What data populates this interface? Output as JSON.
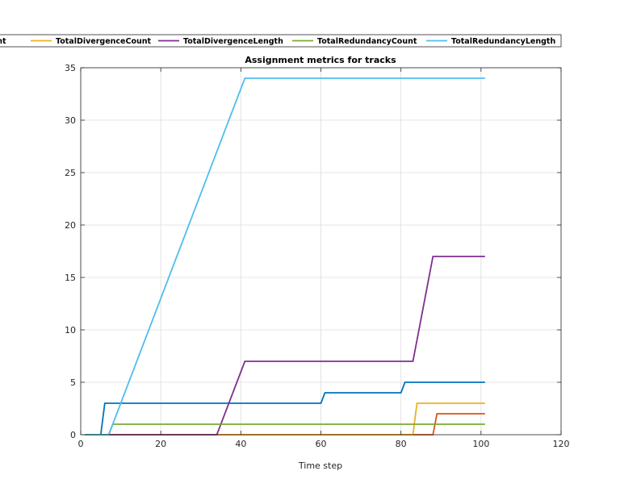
{
  "chart_data": {
    "type": "line",
    "title": "Assignment metrics for tracks",
    "xlabel": "Time step",
    "ylabel": "",
    "xlim": [
      0,
      120
    ],
    "ylim": [
      0,
      35
    ],
    "xticks": [
      0,
      20,
      40,
      60,
      80,
      100,
      120
    ],
    "yticks": [
      0,
      5,
      10,
      15,
      20,
      25,
      30,
      35
    ],
    "grid": true,
    "legend_placement": "top",
    "legend_visible_names": [
      "Count",
      "TotalDivergenceCount",
      "TotalDivergenceLength",
      "TotalRedundancyCount",
      "TotalRedundancyLength"
    ],
    "series": [
      {
        "color": "#0072BD",
        "x": [
          1,
          5,
          6,
          60,
          61,
          80,
          81,
          101
        ],
        "y": [
          0,
          0,
          3,
          3,
          4,
          4,
          5,
          5
        ]
      },
      {
        "color": "#D95319",
        "x": [
          1,
          88,
          89,
          101
        ],
        "y": [
          0,
          0,
          2,
          2
        ]
      },
      {
        "name": "TotalDivergenceCount",
        "color": "#EDB120",
        "x": [
          1,
          83,
          84,
          101
        ],
        "y": [
          0,
          0,
          3,
          3
        ]
      },
      {
        "name": "TotalDivergenceLength",
        "color": "#7E2F8E",
        "x": [
          1,
          34,
          41,
          83,
          88,
          101
        ],
        "y": [
          0,
          0,
          7,
          7,
          17,
          17
        ]
      },
      {
        "name": "TotalRedundancyCount",
        "color": "#77AC30",
        "x": [
          1,
          7,
          8,
          101
        ],
        "y": [
          0,
          0,
          1,
          1
        ]
      },
      {
        "name": "TotalRedundancyLength",
        "color": "#4DBEEE",
        "x": [
          1,
          7,
          41,
          101
        ],
        "y": [
          0,
          0,
          34,
          34
        ]
      }
    ]
  }
}
